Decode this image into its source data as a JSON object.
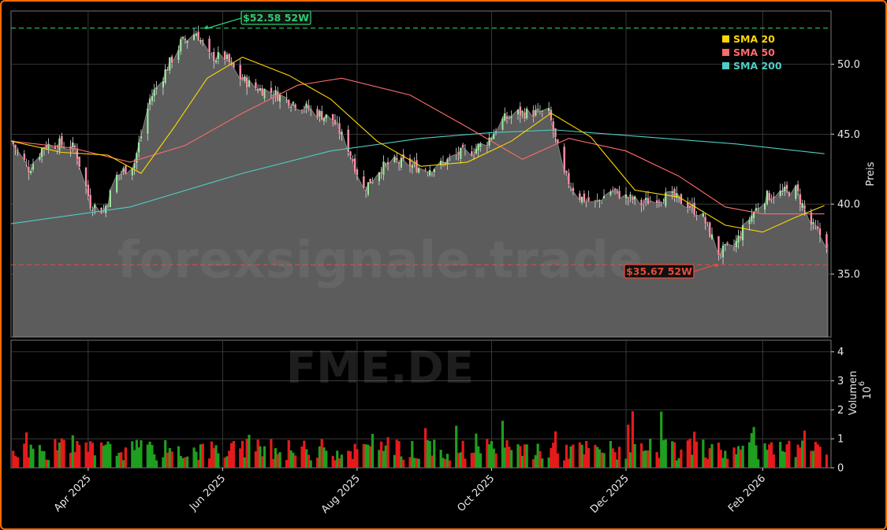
{
  "chart_data": {
    "type": "candlestick",
    "ticker_watermark": "FME.DE",
    "site_watermark": "forexsignale.trade",
    "price_axis": {
      "label": "Preis",
      "ylim": [
        30.5,
        53.8
      ],
      "ticks": [
        35.0,
        40.0,
        45.0,
        50.0
      ],
      "tick_labels": [
        "35.0",
        "40.0",
        "45.0",
        "50.0"
      ]
    },
    "volume_axis": {
      "label": "Volumen",
      "multiplier_label": "10",
      "multiplier_exp": "6",
      "ylim": [
        0,
        4.4
      ],
      "ticks": [
        0,
        1,
        2,
        3,
        4
      ],
      "tick_labels": [
        "0",
        "1",
        "2",
        "3",
        "4"
      ]
    },
    "x_axis": {
      "range": [
        "2025-02-25",
        "2026-03-04"
      ],
      "ticks": [
        "2025-04-01",
        "2025-06-01",
        "2025-08-01",
        "2025-10-01",
        "2025-12-01",
        "2026-02-01"
      ],
      "tick_labels": [
        "Apr 2025",
        "Jun 2025",
        "Aug 2025",
        "Oct 2025",
        "Dec 2025",
        "Feb 2026"
      ]
    },
    "legend": {
      "placement": "top-right",
      "entries": [
        {
          "label": "SMA 20",
          "color": "#ffd700"
        },
        {
          "label": "SMA 50",
          "color": "#ff6b6b"
        },
        {
          "label": "SMA 200",
          "color": "#4ecdc4"
        }
      ]
    },
    "annotations": {
      "high": {
        "label": "$52.58 52W",
        "value": 52.58,
        "date": "2025-05-22",
        "color": "#2ecc71"
      },
      "low": {
        "label": "$35.67 52W",
        "value": 35.67,
        "date": "2026-01-13",
        "color": "#e74c3c"
      }
    },
    "grid": true,
    "close_series": {
      "dates": [
        "2025-02-25",
        "2025-03-05",
        "2025-03-12",
        "2025-03-19",
        "2025-03-26",
        "2025-04-02",
        "2025-04-08",
        "2025-04-14",
        "2025-04-22",
        "2025-04-29",
        "2025-05-06",
        "2025-05-13",
        "2025-05-20",
        "2025-05-26",
        "2025-06-02",
        "2025-06-09",
        "2025-06-16",
        "2025-06-23",
        "2025-06-30",
        "2025-07-07",
        "2025-07-14",
        "2025-07-21",
        "2025-07-28",
        "2025-08-04",
        "2025-08-11",
        "2025-08-18",
        "2025-08-25",
        "2025-09-01",
        "2025-09-08",
        "2025-09-15",
        "2025-09-22",
        "2025-09-29",
        "2025-10-06",
        "2025-10-13",
        "2025-10-20",
        "2025-10-27",
        "2025-11-03",
        "2025-11-10",
        "2025-11-17",
        "2025-11-24",
        "2025-12-01",
        "2025-12-08",
        "2025-12-15",
        "2025-12-22",
        "2025-12-29",
        "2026-01-05",
        "2026-01-12",
        "2026-01-19",
        "2026-01-26",
        "2026-02-02",
        "2026-02-09",
        "2026-02-16",
        "2026-02-23",
        "2026-03-02"
      ],
      "close": [
        44.5,
        42.5,
        44.2,
        44.3,
        44.0,
        40.0,
        39.5,
        42.0,
        43.0,
        47.5,
        49.5,
        51.5,
        52.3,
        50.5,
        50.5,
        49.0,
        48.3,
        48.0,
        47.5,
        47.0,
        46.5,
        46.0,
        44.0,
        41.0,
        42.5,
        43.0,
        42.8,
        42.5,
        42.8,
        43.5,
        43.8,
        44.5,
        46.0,
        46.5,
        46.5,
        46.5,
        42.0,
        40.5,
        40.0,
        41.0,
        40.5,
        40.0,
        40.5,
        40.5,
        40.0,
        39.0,
        36.5,
        37.0,
        39.0,
        40.5,
        40.8,
        41.0,
        38.5,
        37.2
      ]
    },
    "sma20": {
      "x": [
        "2025-02-25",
        "2025-03-20",
        "2025-04-10",
        "2025-04-25",
        "2025-05-10",
        "2025-05-25",
        "2025-06-10",
        "2025-07-01",
        "2025-07-20",
        "2025-08-10",
        "2025-08-30",
        "2025-09-20",
        "2025-10-10",
        "2025-10-28",
        "2025-11-15",
        "2025-12-05",
        "2025-12-25",
        "2026-01-15",
        "2026-02-01",
        "2026-02-15",
        "2026-03-01"
      ],
      "y": [
        44.5,
        43.7,
        43.5,
        42.2,
        45.5,
        49.0,
        50.5,
        49.2,
        47.5,
        44.5,
        42.7,
        43.0,
        44.5,
        46.5,
        44.8,
        41.0,
        40.5,
        38.5,
        38.0,
        39.0,
        39.9
      ]
    },
    "sma50": {
      "x": [
        "2025-02-25",
        "2025-03-25",
        "2025-04-20",
        "2025-05-15",
        "2025-06-10",
        "2025-07-05",
        "2025-07-25",
        "2025-08-25",
        "2025-09-20",
        "2025-10-15",
        "2025-11-05",
        "2025-12-01",
        "2025-12-25",
        "2026-01-15",
        "2026-02-01",
        "2026-03-01"
      ],
      "y": [
        44.5,
        44.0,
        43.0,
        44.2,
        46.5,
        48.5,
        49.0,
        47.8,
        45.5,
        43.2,
        44.7,
        43.8,
        42.0,
        39.8,
        39.3,
        39.3
      ]
    },
    "sma200": {
      "x": [
        "2025-02-25",
        "2025-04-20",
        "2025-06-10",
        "2025-07-20",
        "2025-08-30",
        "2025-09-30",
        "2025-10-30",
        "2025-12-10",
        "2026-01-20",
        "2026-03-01"
      ],
      "y": [
        38.6,
        39.8,
        42.2,
        43.8,
        44.7,
        45.1,
        45.3,
        44.8,
        44.3,
        43.6
      ]
    }
  }
}
